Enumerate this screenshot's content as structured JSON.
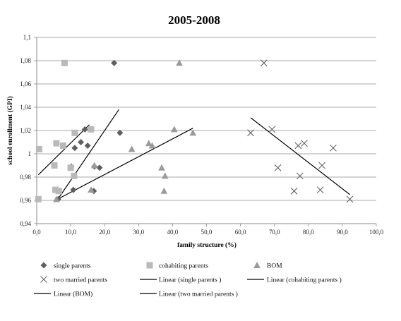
{
  "chart_data": {
    "type": "scatter",
    "title": "2005-2008",
    "xlabel": "family structure (%)",
    "ylabel": "school enrollment (GPI)",
    "xlim": [
      0,
      100
    ],
    "ylim": [
      0.94,
      1.1
    ],
    "x_ticks": [
      "0,0",
      "10,0",
      "20,0",
      "30,0",
      "40,0",
      "50,0",
      "60,0",
      "70,0",
      "80,0",
      "90,0",
      "100,0"
    ],
    "y_ticks": [
      "0,94",
      "0,96",
      "0,98",
      "1",
      "1,02",
      "1,04",
      "1,06",
      "1,08",
      "1,1"
    ],
    "grid": "horizontal",
    "legend_position": "bottom",
    "series": [
      {
        "name": "single parents",
        "marker": "diamond",
        "color": "#5f5f5f",
        "points": [
          [
            22.8,
            1.078
          ],
          [
            24.5,
            1.018
          ],
          [
            14.2,
            1.021
          ],
          [
            13.0,
            1.01
          ],
          [
            15.0,
            1.007
          ],
          [
            11.2,
            1.005
          ],
          [
            10.2,
            0.989
          ],
          [
            17.0,
            0.989
          ],
          [
            18.5,
            0.988
          ],
          [
            10.8,
            0.969
          ],
          [
            16.8,
            0.968
          ],
          [
            6.3,
            0.961
          ]
        ]
      },
      {
        "name": "cohabiting parents",
        "marker": "square",
        "color": "#b9b9b9",
        "points": [
          [
            8.2,
            1.078
          ],
          [
            16.0,
            1.021
          ],
          [
            11.2,
            1.018
          ],
          [
            5.8,
            1.009
          ],
          [
            7.8,
            1.007
          ],
          [
            0.7,
            1.004
          ],
          [
            10.0,
            0.988
          ],
          [
            5.2,
            0.99
          ],
          [
            11.0,
            0.981
          ],
          [
            5.5,
            0.969
          ],
          [
            6.5,
            0.968
          ],
          [
            0.5,
            0.961
          ]
        ]
      },
      {
        "name": "BOM",
        "marker": "triangle",
        "color": "#9a9a9a",
        "points": [
          [
            42.0,
            1.078
          ],
          [
            40.5,
            1.021
          ],
          [
            46.0,
            1.018
          ],
          [
            33.0,
            1.009
          ],
          [
            34.0,
            1.007
          ],
          [
            28.0,
            1.004
          ],
          [
            17.0,
            0.99
          ],
          [
            36.8,
            0.988
          ],
          [
            37.8,
            0.981
          ],
          [
            16.0,
            0.969
          ],
          [
            37.5,
            0.968
          ],
          [
            5.8,
            0.961
          ]
        ]
      },
      {
        "name": "two married parents",
        "marker": "x",
        "color": "#666666",
        "points": [
          [
            66.9,
            1.078
          ],
          [
            63.0,
            1.018
          ],
          [
            69.3,
            1.021
          ],
          [
            77.0,
            1.007
          ],
          [
            78.8,
            1.009
          ],
          [
            87.3,
            1.005
          ],
          [
            71.0,
            0.988
          ],
          [
            84.0,
            0.99
          ],
          [
            77.5,
            0.981
          ],
          [
            75.8,
            0.968
          ],
          [
            83.5,
            0.969
          ],
          [
            92.2,
            0.961
          ]
        ]
      }
    ],
    "trendlines": [
      {
        "name": "Linear (single parents )",
        "color": "#000000",
        "x": [
          6.0,
          24.2
        ],
        "y": [
          0.96,
          1.038
        ]
      },
      {
        "name": "Linear (cohabiting parents )",
        "color": "#000000",
        "x": [
          0.5,
          15.5
        ],
        "y": [
          0.982,
          1.025
        ]
      },
      {
        "name": "Linear (BOM)",
        "color": "#000000",
        "x": [
          5.5,
          46.0
        ],
        "y": [
          0.96,
          1.022
        ]
      },
      {
        "name": "Linear (two married parents )",
        "color": "#000000",
        "x": [
          63.0,
          92.2
        ],
        "y": [
          1.031,
          0.965
        ]
      }
    ]
  }
}
